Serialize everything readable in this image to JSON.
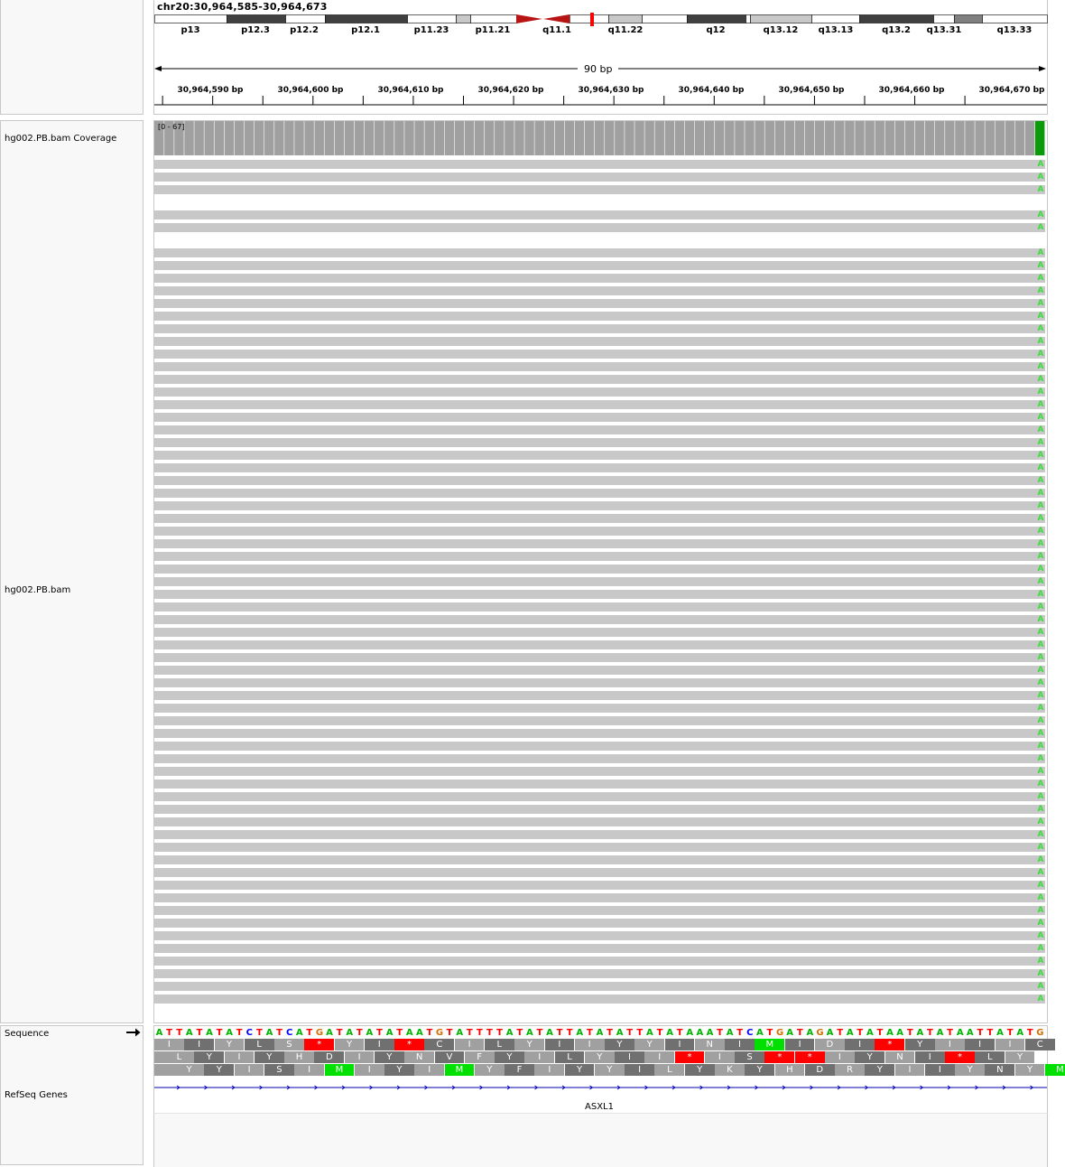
{
  "locus": "chr20:30,964,585-30,964,673",
  "ideogram": {
    "bands": [
      "p13",
      "p12.3",
      "p12.2",
      "p12.1",
      "p11.23",
      "p11.21",
      "q11.1",
      "q11.22",
      "q12",
      "q13.12",
      "q13.13",
      "q13.2",
      "q13.31",
      "q13.33"
    ]
  },
  "ruler": {
    "span_label": "90 bp",
    "ticks": [
      "30,964,590 bp",
      "30,964,600 bp",
      "30,964,610 bp",
      "30,964,620 bp",
      "30,964,630 bp",
      "30,964,640 bp",
      "30,964,650 bp",
      "30,964,660 bp",
      "30,964,670 bp"
    ]
  },
  "tracks": {
    "coverage_name": "hg002.PB.bam Coverage",
    "coverage_range": "[0 - 67]",
    "alignment_name": "hg002.PB.bam",
    "sequence_name": "Sequence",
    "genes_name": "RefSeq Genes",
    "gene_label": "ASXL1"
  },
  "reads": {
    "mismatch_base": "A",
    "row_count": 67,
    "empty_rows": [
      3,
      6
    ]
  },
  "sequence": {
    "bases": "ATTATATATCTATCATGATATATATAATGTATTTTATATATTATATATTATATAAATATCATGATAGATATATAATATATAATTATATG",
    "frame1": [
      "I",
      "I",
      "Y",
      "L",
      "S",
      "*",
      "Y",
      "I",
      "*",
      "C",
      "I",
      "L",
      "Y",
      "I",
      "I",
      "Y",
      "Y",
      "I",
      "N",
      "I",
      "M",
      "I",
      "D",
      "I",
      "*",
      "Y",
      "I",
      "I",
      "I",
      "C"
    ],
    "frame2": [
      "L",
      "Y",
      "I",
      "Y",
      "H",
      "D",
      "I",
      "Y",
      "N",
      "V",
      "F",
      "Y",
      "I",
      "L",
      "Y",
      "I",
      "I",
      "*",
      "I",
      "S",
      "*",
      "*",
      "I",
      "Y",
      "N",
      "I",
      "*",
      "L",
      "Y"
    ],
    "frame3": [
      "Y",
      "Y",
      "I",
      "S",
      "I",
      "M",
      "I",
      "Y",
      "I",
      "M",
      "Y",
      "F",
      "I",
      "Y",
      "Y",
      "I",
      "L",
      "Y",
      "K",
      "Y",
      "H",
      "D",
      "R",
      "Y",
      "I",
      "I",
      "Y",
      "N",
      "Y",
      "M"
    ]
  },
  "colors": {
    "A": "#00b400",
    "T": "#ff0000",
    "C": "#0000ff",
    "G": "#d17105",
    "stop": "#ff0000",
    "start": "#00e000",
    "coverage": "#a0a0a0",
    "read": "#c8c8c8",
    "mismatch": "#3ddc3d"
  }
}
